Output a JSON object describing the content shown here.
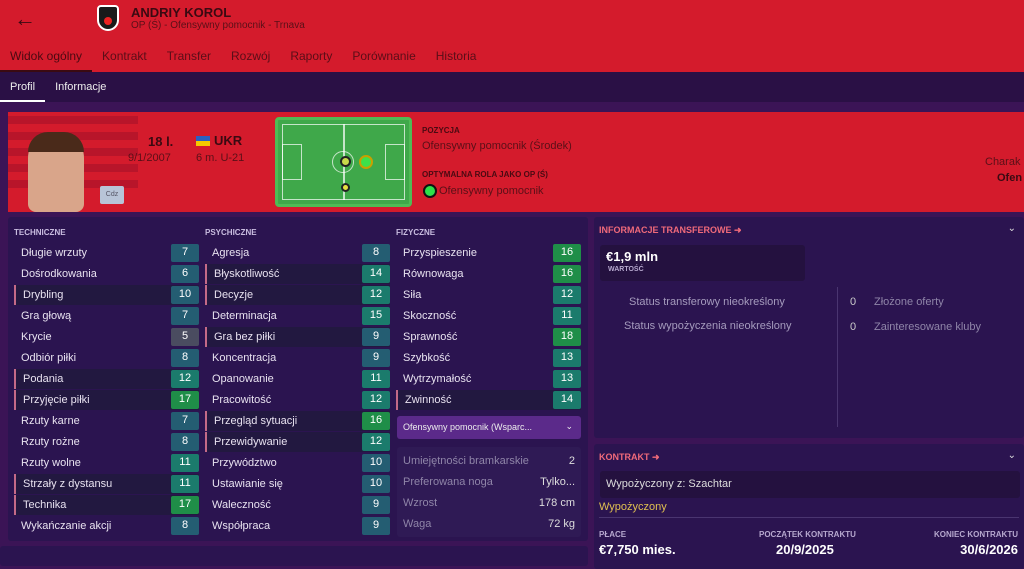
{
  "header": {
    "back": "←",
    "name": "ANDRIY KOROL",
    "subtitle": "OP (Ś) - Ofensywny pomocnik - Trnava",
    "tabs": [
      "Widok ogólny",
      "Kontrakt",
      "Transfer",
      "Rozwój",
      "Raporty",
      "Porównanie",
      "Historia"
    ]
  },
  "subtabs": [
    "Profil",
    "Informacje"
  ],
  "profile": {
    "age": "18 l.",
    "dob": "9/1/2007",
    "nation": "UKR",
    "caps": "6 m. U-21",
    "cdz": "Cdz",
    "position_label": "POZYCJA",
    "position": "Ofensywny pomocnik (Środek)",
    "role_label": "OPTYMALNA ROLA JAKO OP (Ś)",
    "role": "Ofensywny pomocnik",
    "character_label": "Charak",
    "character": "Ofen"
  },
  "attributes": {
    "technical": {
      "title": "TECHNICZNE",
      "items": [
        {
          "name": "Długie wrzuty",
          "value": 7
        },
        {
          "name": "Dośrodkowania",
          "value": 6
        },
        {
          "name": "Drybling",
          "value": 10,
          "hl": true
        },
        {
          "name": "Gra głową",
          "value": 7
        },
        {
          "name": "Krycie",
          "value": 5
        },
        {
          "name": "Odbiór piłki",
          "value": 8
        },
        {
          "name": "Podania",
          "value": 12,
          "hl": true
        },
        {
          "name": "Przyjęcie piłki",
          "value": 17,
          "hl": true
        },
        {
          "name": "Rzuty karne",
          "value": 7
        },
        {
          "name": "Rzuty rożne",
          "value": 8
        },
        {
          "name": "Rzuty wolne",
          "value": 11
        },
        {
          "name": "Strzały z dystansu",
          "value": 11,
          "hl": true
        },
        {
          "name": "Technika",
          "value": 17,
          "hl": true
        },
        {
          "name": "Wykańczanie akcji",
          "value": 8
        }
      ]
    },
    "mental": {
      "title": "PSYCHICZNE",
      "items": [
        {
          "name": "Agresja",
          "value": 8
        },
        {
          "name": "Błyskotliwość",
          "value": 14,
          "hl": true
        },
        {
          "name": "Decyzje",
          "value": 12,
          "hl": true
        },
        {
          "name": "Determinacja",
          "value": 15
        },
        {
          "name": "Gra bez piłki",
          "value": 9,
          "hl": true
        },
        {
          "name": "Koncentracja",
          "value": 9
        },
        {
          "name": "Opanowanie",
          "value": 11
        },
        {
          "name": "Pracowitość",
          "value": 12
        },
        {
          "name": "Przegląd sytuacji",
          "value": 16,
          "hl": true
        },
        {
          "name": "Przewidywanie",
          "value": 12,
          "hl": true
        },
        {
          "name": "Przywództwo",
          "value": 10
        },
        {
          "name": "Ustawianie się",
          "value": 10
        },
        {
          "name": "Waleczność",
          "value": 9
        },
        {
          "name": "Współpraca",
          "value": 9
        }
      ]
    },
    "physical": {
      "title": "FIZYCZNE",
      "items": [
        {
          "name": "Przyspieszenie",
          "value": 16
        },
        {
          "name": "Równowaga",
          "value": 16
        },
        {
          "name": "Siła",
          "value": 12
        },
        {
          "name": "Skoczność",
          "value": 11
        },
        {
          "name": "Sprawność",
          "value": 18
        },
        {
          "name": "Szybkość",
          "value": 13
        },
        {
          "name": "Wytrzymałość",
          "value": 13
        },
        {
          "name": "Zwinność",
          "value": 14,
          "hl": true
        }
      ]
    }
  },
  "role_select": "Ofensywny pomocnik (Wsparc...",
  "info": [
    {
      "k": "Umiejętności bramkarskie",
      "v": "2"
    },
    {
      "k": "Preferowana noga",
      "v": "Tylko..."
    },
    {
      "k": "Wzrost",
      "v": "178 cm"
    },
    {
      "k": "Waga",
      "v": "72 kg"
    }
  ],
  "transfer": {
    "title": "INFORMACJE TRANSFEROWE",
    "value": "€1,9 mln",
    "value_label": "WARTOŚĆ",
    "status1": "Status transferowy nieokreślony",
    "status2": "Status wypożyczenia nieokreślony",
    "offers_n": "0",
    "offers": "Złożone oferty",
    "clubs_n": "0",
    "clubs": "Zainteresowane kluby"
  },
  "contract": {
    "title": "KONTRAKT",
    "loan_from": "Wypożyczony z: Szachtar",
    "status": "Wypożyczony",
    "wage_label": "PŁACE",
    "wage": "€7,750 mies.",
    "start_label": "POCZĄTEK KONTRAKTU",
    "start": "20/9/2025",
    "end_label": "KONIEC KONTRAKTU",
    "end": "30/6/2026"
  },
  "colors": {
    "header": "#d41b2c",
    "panel": "#2b1450",
    "accent": "#f06a7a"
  }
}
